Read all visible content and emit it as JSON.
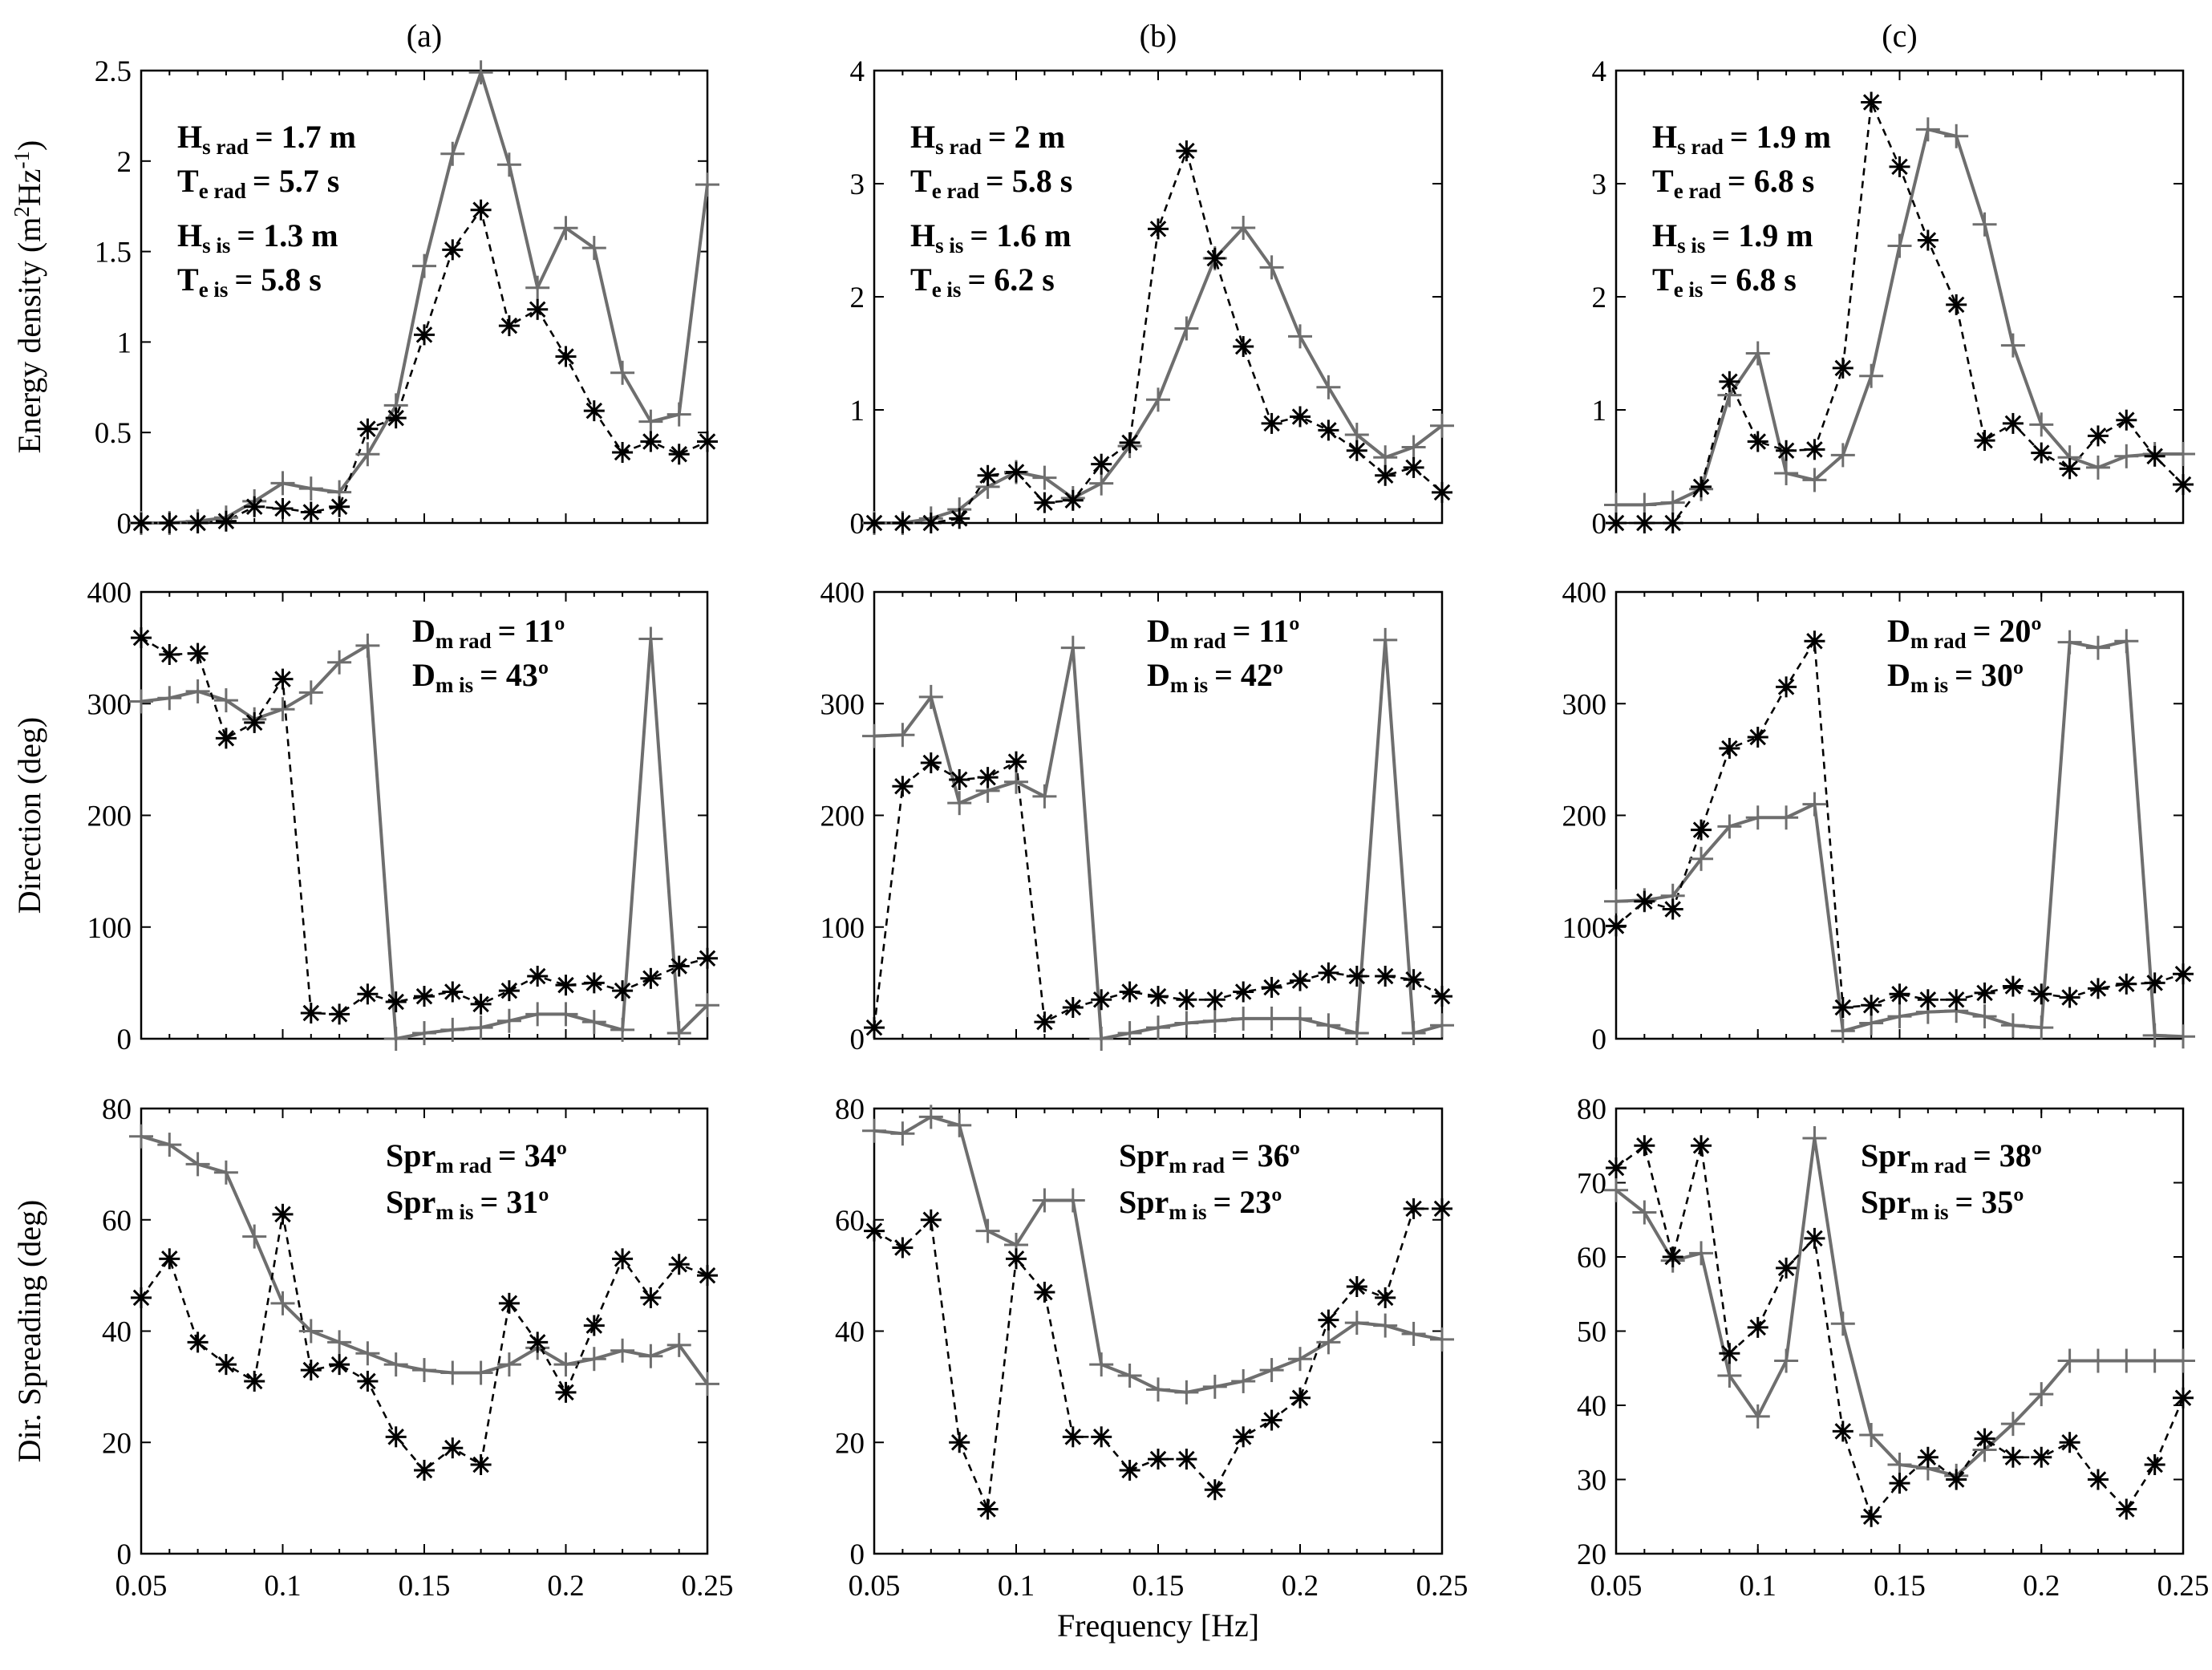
{
  "figure": {
    "column_titles": [
      "(a)",
      "(b)",
      "(c)"
    ],
    "xlabel": "Frequency [Hz]",
    "row_ylabels": [
      "Energy density (m2Hz-1)",
      "Direction (deg)",
      "Dir. Spreading (deg)"
    ],
    "row_ylabel_parts": [
      {
        "base": "Energy density (m",
        "sup1": "2",
        "mid": "Hz",
        "sup2": "-1",
        "end": ")"
      },
      {
        "base": "Direction (deg)"
      },
      {
        "base": "Dir. Spreading (deg)"
      }
    ],
    "series_styles": {
      "rad": {
        "color": "#6e6e6e",
        "marker": "plus",
        "line": "solid"
      },
      "is": {
        "color": "#000000",
        "marker": "asterisk",
        "line": "dashed"
      }
    }
  },
  "annotations": {
    "a_row0": [
      {
        "main": "H",
        "sub": "s rad",
        "value": "= 1.7 m"
      },
      {
        "main": "T",
        "sub": "e rad",
        "value": "= 5.7 s"
      },
      {
        "main": "H",
        "sub": "s is",
        "value": "= 1.3 m"
      },
      {
        "main": "T",
        "sub": "e is",
        "value": "= 5.8 s"
      }
    ],
    "b_row0": [
      {
        "main": "H",
        "sub": "s rad",
        "value": "= 2 m"
      },
      {
        "main": "T",
        "sub": "e rad",
        "value": "= 5.8 s"
      },
      {
        "main": "H",
        "sub": "s is",
        "value": "= 1.6 m"
      },
      {
        "main": "T",
        "sub": "e is",
        "value": "= 6.2 s"
      }
    ],
    "c_row0": [
      {
        "main": "H",
        "sub": "s rad",
        "value": "= 1.9 m"
      },
      {
        "main": "T",
        "sub": "e rad",
        "value": "= 6.8 s"
      },
      {
        "main": "H",
        "sub": "s is",
        "value": "= 1.9 m"
      },
      {
        "main": "T",
        "sub": "e is",
        "value": "= 6.8 s"
      }
    ],
    "a_row1": [
      {
        "main": "D",
        "sub": "m rad",
        "value": "= 11º"
      },
      {
        "main": "D",
        "sub": "m is",
        "value": "= 43º"
      }
    ],
    "b_row1": [
      {
        "main": "D",
        "sub": "m rad",
        "value": "= 11º"
      },
      {
        "main": "D",
        "sub": "m is",
        "value": "= 42º"
      }
    ],
    "c_row1": [
      {
        "main": "D",
        "sub": "m rad",
        "value": "= 20º"
      },
      {
        "main": "D",
        "sub": "m is",
        "value": "= 30º"
      }
    ],
    "a_row2": [
      {
        "main": "Spr",
        "sub": "m rad",
        "value": "= 34º"
      },
      {
        "main": "Spr",
        "sub": "m is",
        "value": "= 31º"
      }
    ],
    "b_row2": [
      {
        "main": "Spr",
        "sub": "m rad",
        "value": "= 36º"
      },
      {
        "main": "Spr",
        "sub": "m is",
        "value": "= 23º"
      }
    ],
    "c_row2": [
      {
        "main": "Spr",
        "sub": "m rad",
        "value": "= 38º"
      },
      {
        "main": "Spr",
        "sub": "m is",
        "value": "= 35º"
      }
    ]
  },
  "chart_data": [
    {
      "id": "a_row0",
      "type": "line",
      "column": "(a)",
      "row": 0,
      "ylabel": "Energy density (m2Hz-1)",
      "xlabel": "Frequency [Hz]",
      "xlim": [
        0.05,
        0.25
      ],
      "ylim": [
        0,
        2.5
      ],
      "xticks": [
        "0.05",
        "0.1",
        "0.15",
        "0.2",
        "0.25"
      ],
      "yticks": [
        "0",
        "0.5",
        "1",
        "1.5",
        "2",
        "2.5"
      ],
      "x": [
        0.05,
        0.06,
        0.07,
        0.08,
        0.09,
        0.1,
        0.11,
        0.12,
        0.13,
        0.14,
        0.15,
        0.16,
        0.17,
        0.18,
        0.19,
        0.2,
        0.21,
        0.22,
        0.23,
        0.24,
        0.25
      ],
      "series": [
        {
          "name": "rad",
          "values": [
            0.0,
            0.0,
            0.01,
            0.03,
            0.12,
            0.22,
            0.19,
            0.17,
            0.38,
            0.65,
            1.42,
            2.04,
            2.49,
            1.98,
            1.3,
            1.63,
            1.52,
            0.83,
            0.56,
            0.6,
            1.87
          ]
        },
        {
          "name": "is",
          "values": [
            0.0,
            0.0,
            0.0,
            0.01,
            0.09,
            0.08,
            0.06,
            0.09,
            0.52,
            0.58,
            1.04,
            1.51,
            1.73,
            1.09,
            1.18,
            0.92,
            0.62,
            0.39,
            0.45,
            0.38,
            0.45
          ]
        }
      ]
    },
    {
      "id": "b_row0",
      "type": "line",
      "column": "(b)",
      "row": 0,
      "ylabel": "Energy density (m2Hz-1)",
      "xlabel": "Frequency [Hz]",
      "xlim": [
        0.05,
        0.25
      ],
      "ylim": [
        0,
        4
      ],
      "xticks": [
        "0.05",
        "0.1",
        "0.15",
        "0.2",
        "0.25"
      ],
      "yticks": [
        "0",
        "1",
        "2",
        "3",
        "4"
      ],
      "x": [
        0.05,
        0.06,
        0.07,
        0.08,
        0.09,
        0.1,
        0.11,
        0.12,
        0.13,
        0.14,
        0.15,
        0.16,
        0.17,
        0.18,
        0.19,
        0.2,
        0.21,
        0.22,
        0.23,
        0.24,
        0.25
      ],
      "series": [
        {
          "name": "rad",
          "values": [
            0.0,
            0.0,
            0.04,
            0.12,
            0.32,
            0.45,
            0.4,
            0.22,
            0.35,
            0.68,
            1.09,
            1.72,
            2.34,
            2.61,
            2.26,
            1.65,
            1.2,
            0.78,
            0.58,
            0.67,
            0.86
          ]
        },
        {
          "name": "is",
          "values": [
            0.0,
            0.0,
            0.0,
            0.04,
            0.42,
            0.45,
            0.18,
            0.2,
            0.52,
            0.71,
            2.6,
            3.29,
            2.34,
            1.56,
            0.88,
            0.94,
            0.82,
            0.64,
            0.42,
            0.49,
            0.27
          ]
        }
      ]
    },
    {
      "id": "c_row0",
      "type": "line",
      "column": "(c)",
      "row": 0,
      "ylabel": "Energy density (m2Hz-1)",
      "xlabel": "Frequency [Hz]",
      "xlim": [
        0.05,
        0.25
      ],
      "ylim": [
        0,
        4
      ],
      "xticks": [
        "0.05",
        "0.1",
        "0.15",
        "0.2",
        "0.25"
      ],
      "yticks": [
        "0",
        "1",
        "2",
        "3",
        "4"
      ],
      "x": [
        0.05,
        0.06,
        0.07,
        0.08,
        0.09,
        0.1,
        0.11,
        0.12,
        0.13,
        0.14,
        0.15,
        0.16,
        0.17,
        0.18,
        0.19,
        0.2,
        0.21,
        0.22,
        0.23,
        0.24,
        0.25
      ],
      "series": [
        {
          "name": "rad",
          "values": [
            0.16,
            0.16,
            0.18,
            0.3,
            1.13,
            1.5,
            0.44,
            0.38,
            0.6,
            1.3,
            2.45,
            3.48,
            3.42,
            2.64,
            1.57,
            0.87,
            0.58,
            0.49,
            0.59,
            0.61,
            0.61
          ]
        },
        {
          "name": "is",
          "values": [
            0.0,
            0.0,
            0.0,
            0.32,
            1.25,
            0.72,
            0.64,
            0.65,
            1.37,
            3.72,
            3.15,
            2.5,
            1.93,
            0.73,
            0.88,
            0.62,
            0.48,
            0.77,
            0.91,
            0.59,
            0.34
          ]
        }
      ]
    },
    {
      "id": "a_row1",
      "type": "line",
      "column": "(a)",
      "row": 1,
      "ylabel": "Direction (deg)",
      "xlabel": "Frequency [Hz]",
      "xlim": [
        0.05,
        0.25
      ],
      "ylim": [
        0,
        400
      ],
      "xticks": [
        "0.05",
        "0.1",
        "0.15",
        "0.2",
        "0.25"
      ],
      "yticks": [
        "0",
        "100",
        "200",
        "300",
        "400"
      ],
      "x": [
        0.05,
        0.06,
        0.07,
        0.08,
        0.09,
        0.1,
        0.11,
        0.12,
        0.13,
        0.14,
        0.15,
        0.16,
        0.17,
        0.18,
        0.19,
        0.2,
        0.21,
        0.22,
        0.23,
        0.24,
        0.25
      ],
      "series": [
        {
          "name": "rad",
          "values": [
            302,
            305,
            311,
            303,
            286,
            295,
            310,
            337,
            352,
            0,
            5,
            8,
            10,
            16,
            22,
            22,
            15,
            8,
            358,
            5,
            30
          ]
        },
        {
          "name": "is",
          "values": [
            359,
            344,
            345,
            269,
            283,
            322,
            23,
            22,
            40,
            33,
            38,
            42,
            31,
            43,
            56,
            48,
            50,
            43,
            54,
            65,
            72
          ]
        }
      ]
    },
    {
      "id": "b_row1",
      "type": "line",
      "column": "(b)",
      "row": 1,
      "ylabel": "Direction (deg)",
      "xlabel": "Frequency [Hz]",
      "xlim": [
        0.05,
        0.25
      ],
      "ylim": [
        0,
        400
      ],
      "xticks": [
        "0.05",
        "0.1",
        "0.15",
        "0.2",
        "0.25"
      ],
      "yticks": [
        "0",
        "100",
        "200",
        "300",
        "400"
      ],
      "x": [
        0.05,
        0.06,
        0.07,
        0.08,
        0.09,
        0.1,
        0.11,
        0.12,
        0.13,
        0.14,
        0.15,
        0.16,
        0.17,
        0.18,
        0.19,
        0.2,
        0.21,
        0.22,
        0.23,
        0.24,
        0.25
      ],
      "series": [
        {
          "name": "rad",
          "values": [
            271,
            272,
            306,
            211,
            222,
            230,
            217,
            350,
            0,
            5,
            10,
            14,
            16,
            18,
            18,
            18,
            12,
            5,
            357,
            5,
            12
          ]
        },
        {
          "name": "is",
          "values": [
            10,
            226,
            247,
            232,
            234,
            248,
            15,
            28,
            35,
            42,
            38,
            35,
            35,
            42,
            46,
            52,
            59,
            56,
            56,
            53,
            38
          ]
        }
      ]
    },
    {
      "id": "c_row1",
      "type": "line",
      "column": "(c)",
      "row": 1,
      "ylabel": "Direction (deg)",
      "xlabel": "Frequency [Hz]",
      "xlim": [
        0.05,
        0.25
      ],
      "ylim": [
        0,
        400
      ],
      "xticks": [
        "0.05",
        "0.1",
        "0.15",
        "0.2",
        "0.25"
      ],
      "yticks": [
        "0",
        "100",
        "200",
        "300",
        "400"
      ],
      "x": [
        0.05,
        0.06,
        0.07,
        0.08,
        0.09,
        0.1,
        0.11,
        0.12,
        0.13,
        0.14,
        0.15,
        0.16,
        0.17,
        0.18,
        0.19,
        0.2,
        0.21,
        0.22,
        0.23,
        0.24,
        0.25
      ],
      "series": [
        {
          "name": "rad",
          "values": [
            123,
            124,
            128,
            161,
            190,
            198,
            198,
            210,
            7,
            14,
            20,
            24,
            25,
            20,
            12,
            10,
            355,
            350,
            356,
            3,
            2
          ]
        },
        {
          "name": "is",
          "values": [
            101,
            123,
            116,
            187,
            260,
            270,
            315,
            356,
            28,
            30,
            40,
            35,
            35,
            41,
            47,
            40,
            37,
            45,
            49,
            50,
            58
          ]
        }
      ]
    },
    {
      "id": "a_row2",
      "type": "line",
      "column": "(a)",
      "row": 2,
      "ylabel": "Dir. Spreading (deg)",
      "xlabel": "Frequency [Hz]",
      "xlim": [
        0.05,
        0.25
      ],
      "ylim": [
        0,
        80
      ],
      "xticks": [
        "0.05",
        "0.1",
        "0.15",
        "0.2",
        "0.25"
      ],
      "yticks": [
        "0",
        "20",
        "40",
        "60",
        "80"
      ],
      "x": [
        0.05,
        0.06,
        0.07,
        0.08,
        0.09,
        0.1,
        0.11,
        0.12,
        0.13,
        0.14,
        0.15,
        0.16,
        0.17,
        0.18,
        0.19,
        0.2,
        0.21,
        0.22,
        0.23,
        0.24,
        0.25
      ],
      "series": [
        {
          "name": "rad",
          "values": [
            75,
            73.5,
            70,
            68.5,
            57,
            45,
            40,
            38,
            36,
            34,
            33,
            32.5,
            32.5,
            34,
            37,
            34,
            35,
            36.5,
            35.5,
            37.5,
            30.5
          ]
        },
        {
          "name": "is",
          "values": [
            46,
            53,
            38,
            34,
            31,
            61,
            33,
            34,
            31,
            21,
            15,
            19,
            16,
            45,
            38,
            29,
            41,
            53,
            46,
            52,
            50
          ]
        }
      ]
    },
    {
      "id": "b_row2",
      "type": "line",
      "column": "(b)",
      "row": 2,
      "ylabel": "Dir. Spreading (deg)",
      "xlabel": "Frequency [Hz]",
      "xlim": [
        0.05,
        0.25
      ],
      "ylim": [
        0,
        80
      ],
      "xticks": [
        "0.05",
        "0.1",
        "0.15",
        "0.2",
        "0.25"
      ],
      "yticks": [
        "0",
        "20",
        "40",
        "60",
        "80"
      ],
      "x": [
        0.05,
        0.06,
        0.07,
        0.08,
        0.09,
        0.1,
        0.11,
        0.12,
        0.13,
        0.14,
        0.15,
        0.16,
        0.17,
        0.18,
        0.19,
        0.2,
        0.21,
        0.22,
        0.23,
        0.24,
        0.25
      ],
      "series": [
        {
          "name": "rad",
          "values": [
            76,
            75.5,
            78.5,
            77,
            58,
            55.5,
            63.5,
            63.5,
            34,
            32,
            29.5,
            29,
            30,
            31,
            33,
            35,
            38,
            41.5,
            41,
            39.5,
            38.5
          ]
        },
        {
          "name": "is",
          "values": [
            58,
            55,
            60,
            20,
            8,
            53,
            47,
            21,
            21,
            15,
            17,
            17,
            11.5,
            21,
            24,
            28,
            42,
            48,
            46,
            62,
            62
          ]
        }
      ]
    },
    {
      "id": "c_row2",
      "type": "line",
      "column": "(c)",
      "row": 2,
      "ylabel": "Dir. Spreading (deg)",
      "xlabel": "Frequency [Hz]",
      "xlim": [
        0.05,
        0.25
      ],
      "ylim": [
        20,
        80
      ],
      "xticks": [
        "0.05",
        "0.1",
        "0.15",
        "0.2",
        "0.25"
      ],
      "yticks": [
        "20",
        "30",
        "40",
        "50",
        "60",
        "70",
        "80"
      ],
      "x": [
        0.05,
        0.06,
        0.07,
        0.08,
        0.09,
        0.1,
        0.11,
        0.12,
        0.13,
        0.14,
        0.15,
        0.16,
        0.17,
        0.18,
        0.19,
        0.2,
        0.21,
        0.22,
        0.23,
        0.24,
        0.25
      ],
      "series": [
        {
          "name": "rad",
          "values": [
            69,
            66,
            59.5,
            60.5,
            44,
            38.5,
            46,
            76,
            51,
            36,
            32,
            31.5,
            30.5,
            34,
            37.5,
            41.5,
            46,
            46,
            46,
            46,
            46
          ]
        },
        {
          "name": "is",
          "values": [
            72,
            75,
            60,
            75,
            47,
            50.5,
            58.5,
            62.5,
            36.5,
            25,
            29.5,
            33,
            30,
            35.5,
            33,
            33,
            35,
            30,
            26,
            32,
            41
          ]
        }
      ]
    }
  ]
}
